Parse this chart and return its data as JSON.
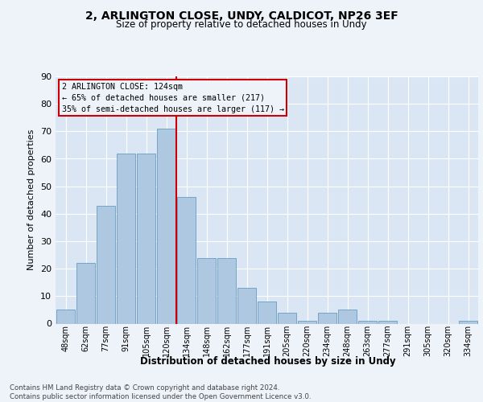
{
  "title1": "2, ARLINGTON CLOSE, UNDY, CALDICOT, NP26 3EF",
  "title2": "Size of property relative to detached houses in Undy",
  "xlabel": "Distribution of detached houses by size in Undy",
  "ylabel": "Number of detached properties",
  "categories": [
    "48sqm",
    "62sqm",
    "77sqm",
    "91sqm",
    "105sqm",
    "120sqm",
    "134sqm",
    "148sqm",
    "162sqm",
    "177sqm",
    "191sqm",
    "205sqm",
    "220sqm",
    "234sqm",
    "248sqm",
    "263sqm",
    "277sqm",
    "291sqm",
    "305sqm",
    "320sqm",
    "334sqm"
  ],
  "values": [
    5,
    22,
    43,
    62,
    62,
    71,
    46,
    24,
    24,
    13,
    8,
    4,
    1,
    4,
    5,
    1,
    1,
    0,
    0,
    0,
    1
  ],
  "bar_color": "#adc8e0",
  "bar_edge_color": "#6a9bbf",
  "vline_x": 5.5,
  "vline_color": "#cc0000",
  "annotation_line1": "2 ARLINGTON CLOSE: 124sqm",
  "annotation_line2": "← 65% of detached houses are smaller (217)",
  "annotation_line3": "35% of semi-detached houses are larger (117) →",
  "box_edge_color": "#cc0000",
  "ylim": [
    0,
    90
  ],
  "yticks": [
    0,
    10,
    20,
    30,
    40,
    50,
    60,
    70,
    80,
    90
  ],
  "footer_text": "Contains HM Land Registry data © Crown copyright and database right 2024.\nContains public sector information licensed under the Open Government Licence v3.0.",
  "background_color": "#eef2f9",
  "plot_background": "#dbe6f4"
}
